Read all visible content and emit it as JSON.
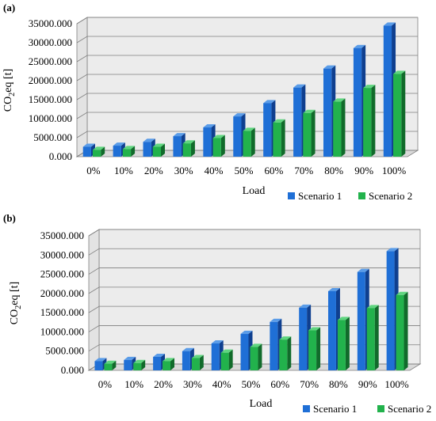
{
  "colors": {
    "scenario1_front": "#1f6fd6",
    "scenario1_side": "#0f3f8f",
    "scenario1_top": "#5a9ce8",
    "scenario2_front": "#22b24c",
    "scenario2_side": "#116b2b",
    "scenario2_top": "#5fd57f",
    "wall": "#ececec",
    "floor": "#d9d9d9",
    "grid": "#7f7f7f"
  },
  "chart_data": [
    {
      "panel_label": "(a)",
      "type": "bar",
      "subtype": "3d-clustered-column",
      "categories": [
        "0%",
        "10%",
        "20%",
        "30%",
        "40%",
        "50%",
        "60%",
        "70%",
        "80%",
        "90%",
        "100%"
      ],
      "series": [
        {
          "name": "Scenario 1",
          "values": [
            2600,
            2900,
            3900,
            5400,
            7700,
            10600,
            14100,
            18200,
            23200,
            28600,
            34500
          ]
        },
        {
          "name": "Scenario 2",
          "values": [
            1800,
            2000,
            2600,
            3500,
            4900,
            6800,
            9000,
            11500,
            14500,
            18100,
            21800
          ]
        }
      ],
      "ylim": [
        0,
        35000
      ],
      "yticks": [
        "0.000",
        "5000.000",
        "10000.000",
        "15000.000",
        "20000.000",
        "25000.000",
        "30000.000",
        "35000.000"
      ],
      "xlabel": "Load",
      "ylabel_main": "CO",
      "ylabel_sub": "2",
      "ylabel_rest": "eq [t]",
      "grid": true,
      "legend": "bottom-right"
    },
    {
      "panel_label": "(b)",
      "type": "bar",
      "subtype": "3d-clustered-column",
      "categories": [
        "0%",
        "10%",
        "20%",
        "30%",
        "40%",
        "50%",
        "60%",
        "70%",
        "80%",
        "90%",
        "100%"
      ],
      "series": [
        {
          "name": "Scenario 1",
          "values": [
            2400,
            2700,
            3500,
            5000,
            7000,
            9500,
            12600,
            16300,
            20600,
            25600,
            31000
          ]
        },
        {
          "name": "Scenario 2",
          "values": [
            1700,
            1900,
            2400,
            3200,
            4600,
            6100,
            8000,
            10400,
            13100,
            16200,
            19600
          ]
        }
      ],
      "ylim": [
        0,
        35000
      ],
      "yticks": [
        "0.000",
        "5000.000",
        "10000.000",
        "15000.000",
        "20000.000",
        "25000.000",
        "30000.000",
        "35000.000"
      ],
      "xlabel": "Load",
      "ylabel_main": "CO",
      "ylabel_sub": "2",
      "ylabel_rest": "eq [t]",
      "grid": true,
      "legend": "bottom-right"
    }
  ]
}
